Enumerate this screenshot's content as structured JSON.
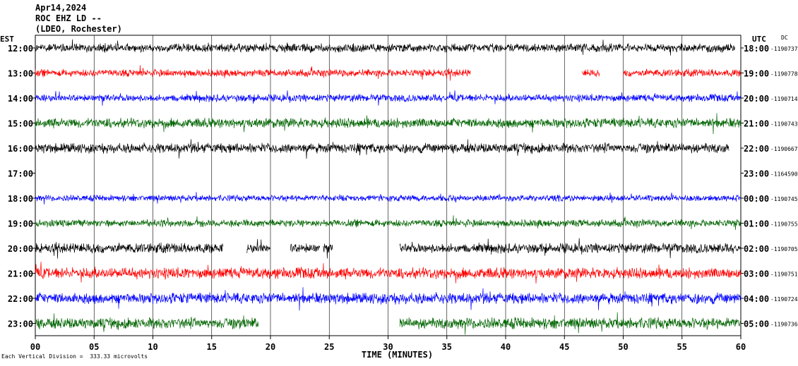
{
  "header": {
    "date": "Apr14,2024",
    "station": "ROC EHZ LD --",
    "network": "(LDEO, Rochester)"
  },
  "left_axis_label": "EST",
  "right_axis_label": "UTC",
  "dc_label": "DC",
  "footer": {
    "scale_note": "Each Vertical Division =  333.33 microvolts",
    "xlabel": "TIME (MINUTES)"
  },
  "colors": {
    "black": "#000000",
    "red": "#ff0000",
    "blue": "#0000ff",
    "green": "#006400",
    "grid": "#000000"
  },
  "chart_data": {
    "type": "line",
    "title": "Apr14,2024",
    "xlabel": "TIME (MINUTES)",
    "ylabel": "EST",
    "xlim": [
      0,
      60
    ],
    "x_ticks": [
      "00",
      "05",
      "10",
      "15",
      "20",
      "25",
      "30",
      "35",
      "40",
      "45",
      "50",
      "55",
      "60"
    ],
    "grid": true,
    "rows": [
      {
        "est": "12:00",
        "utc": "18:00",
        "dc": "-1190737",
        "color": "black",
        "amplitude": 7,
        "segments": [
          [
            0,
            59.5
          ]
        ]
      },
      {
        "est": "13:00",
        "utc": "19:00",
        "dc": "-1190778",
        "color": "red",
        "amplitude": 6,
        "segments": [
          [
            0,
            37
          ],
          [
            46.5,
            48
          ],
          [
            50,
            60
          ]
        ]
      },
      {
        "est": "14:00",
        "utc": "20:00",
        "dc": "-1190714",
        "color": "blue",
        "amplitude": 6,
        "segments": [
          [
            0,
            60
          ]
        ]
      },
      {
        "est": "15:00",
        "utc": "21:00",
        "dc": "-1190743",
        "color": "green",
        "amplitude": 8,
        "segments": [
          [
            0,
            60
          ]
        ]
      },
      {
        "est": "16:00",
        "utc": "22:00",
        "dc": "-1190667",
        "color": "black",
        "amplitude": 8,
        "segments": [
          [
            0,
            59
          ]
        ]
      },
      {
        "est": "17:00",
        "utc": "23:00",
        "dc": "-1164590",
        "color": "red",
        "amplitude": 0,
        "segments": []
      },
      {
        "est": "18:00",
        "utc": "00:00",
        "dc": "-1190745",
        "color": "blue",
        "amplitude": 5,
        "segments": [
          [
            0,
            60
          ]
        ]
      },
      {
        "est": "19:00",
        "utc": "01:00",
        "dc": "-1190755",
        "color": "green",
        "amplitude": 6,
        "segments": [
          [
            0,
            60
          ]
        ]
      },
      {
        "est": "20:00",
        "utc": "02:00",
        "dc": "-1190705",
        "color": "black",
        "amplitude": 8,
        "segments": [
          [
            0,
            16
          ],
          [
            18,
            20
          ],
          [
            21.7,
            24.2
          ],
          [
            24.5,
            25.3
          ],
          [
            31,
            60
          ]
        ]
      },
      {
        "est": "21:00",
        "utc": "03:00",
        "dc": "-1190751",
        "color": "red",
        "amplitude": 9,
        "segments": [
          [
            0,
            60
          ]
        ]
      },
      {
        "est": "22:00",
        "utc": "04:00",
        "dc": "-1190724",
        "color": "blue",
        "amplitude": 9,
        "segments": [
          [
            0,
            60
          ]
        ]
      },
      {
        "est": "23:00",
        "utc": "05:00",
        "dc": "-1190736",
        "color": "green",
        "amplitude": 9,
        "segments": [
          [
            0,
            19
          ],
          [
            31,
            60
          ]
        ]
      }
    ]
  }
}
